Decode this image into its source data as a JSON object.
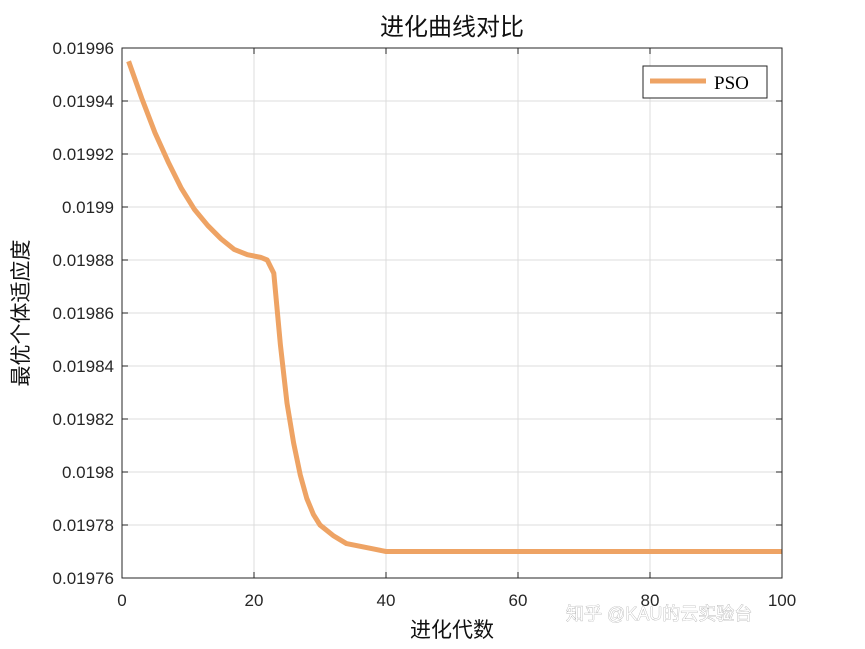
{
  "chart_data": {
    "type": "line",
    "title": "进化曲线对比",
    "xlabel": "进化代数",
    "ylabel": "最优个体适应度",
    "xlim": [
      0,
      100
    ],
    "ylim": [
      0.01976,
      0.01996
    ],
    "xticks": [
      0,
      20,
      40,
      60,
      80,
      100
    ],
    "xtick_labels": [
      "0",
      "20",
      "40",
      "60",
      "80",
      "100"
    ],
    "yticks": [
      0.01976,
      0.01978,
      0.0198,
      0.01982,
      0.01984,
      0.01986,
      0.01988,
      0.0199,
      0.01992,
      0.01994,
      0.01996
    ],
    "ytick_labels": [
      "0.01976",
      "0.01978",
      "0.0198",
      "0.01982",
      "0.01984",
      "0.01986",
      "0.01988",
      "0.0199",
      "0.01992",
      "0.01994",
      "0.01996"
    ],
    "grid": true,
    "legend_position": "top-right",
    "series": [
      {
        "name": "PSO",
        "color": "#EEA364",
        "x": [
          1,
          3,
          5,
          7,
          9,
          11,
          13,
          15,
          17,
          19,
          21,
          22,
          23,
          24,
          25,
          26,
          27,
          28,
          29,
          30,
          32,
          34,
          36,
          38,
          40,
          45,
          50,
          60,
          70,
          80,
          90,
          100
        ],
        "y": [
          0.019955,
          0.019941,
          0.019928,
          0.019917,
          0.019907,
          0.019899,
          0.019893,
          0.019888,
          0.019884,
          0.019882,
          0.019881,
          0.01988,
          0.019875,
          0.019848,
          0.019826,
          0.019811,
          0.019799,
          0.01979,
          0.019784,
          0.01978,
          0.019776,
          0.019773,
          0.019772,
          0.019771,
          0.01977,
          0.01977,
          0.01977,
          0.01977,
          0.01977,
          0.01977,
          0.01977,
          0.01977
        ]
      }
    ]
  },
  "watermark": "知乎 @KAU的云实验台"
}
